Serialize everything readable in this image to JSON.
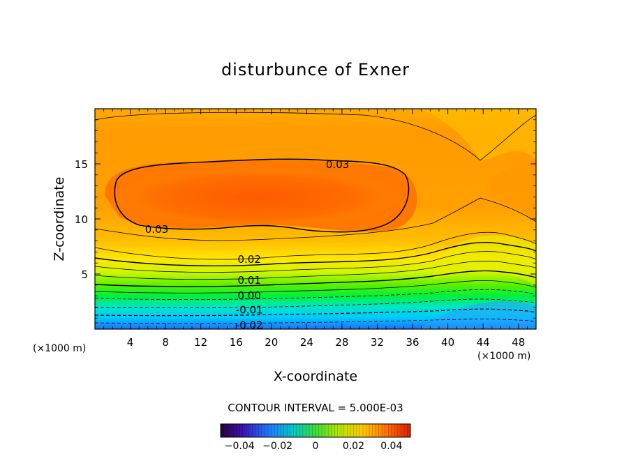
{
  "chart_data": {
    "type": "heatmap",
    "title": "disturbunce of Exner",
    "xlabel": "X-coordinate",
    "ylabel": "Z-coordinate",
    "x_unit_label": "(×1000 m)",
    "x_unit_label_right": "(×1000 m)",
    "xlim": [
      0,
      50
    ],
    "ylim": [
      0,
      20
    ],
    "x_ticks": [
      4,
      8,
      12,
      16,
      20,
      24,
      28,
      32,
      36,
      40,
      44,
      48
    ],
    "y_ticks": [
      5,
      10,
      15
    ],
    "contour_labels": [
      {
        "text": "0.03",
        "x": 27.5,
        "z": 15.0
      },
      {
        "text": "0.03",
        "x": 7.0,
        "z": 9.1
      },
      {
        "text": "0.02",
        "x": 17.5,
        "z": 6.4
      },
      {
        "text": "0.01",
        "x": 17.5,
        "z": 4.5
      },
      {
        "text": "0.00",
        "x": 17.5,
        "z": 3.1
      },
      {
        "text": "-0.01",
        "x": 17.5,
        "z": 1.8
      },
      {
        "text": "-0.02",
        "x": 17.5,
        "z": 0.4
      }
    ],
    "contour_interval_text": "CONTOUR INTERVAL = 5.000E-03",
    "colorbar": {
      "range": [
        -0.05,
        0.05
      ],
      "tick_labels": [
        "-0.04",
        "-0.02",
        "0",
        "0.02",
        "0.04"
      ],
      "tick_values": [
        -0.04,
        -0.02,
        0,
        0.02,
        0.04
      ]
    }
  }
}
